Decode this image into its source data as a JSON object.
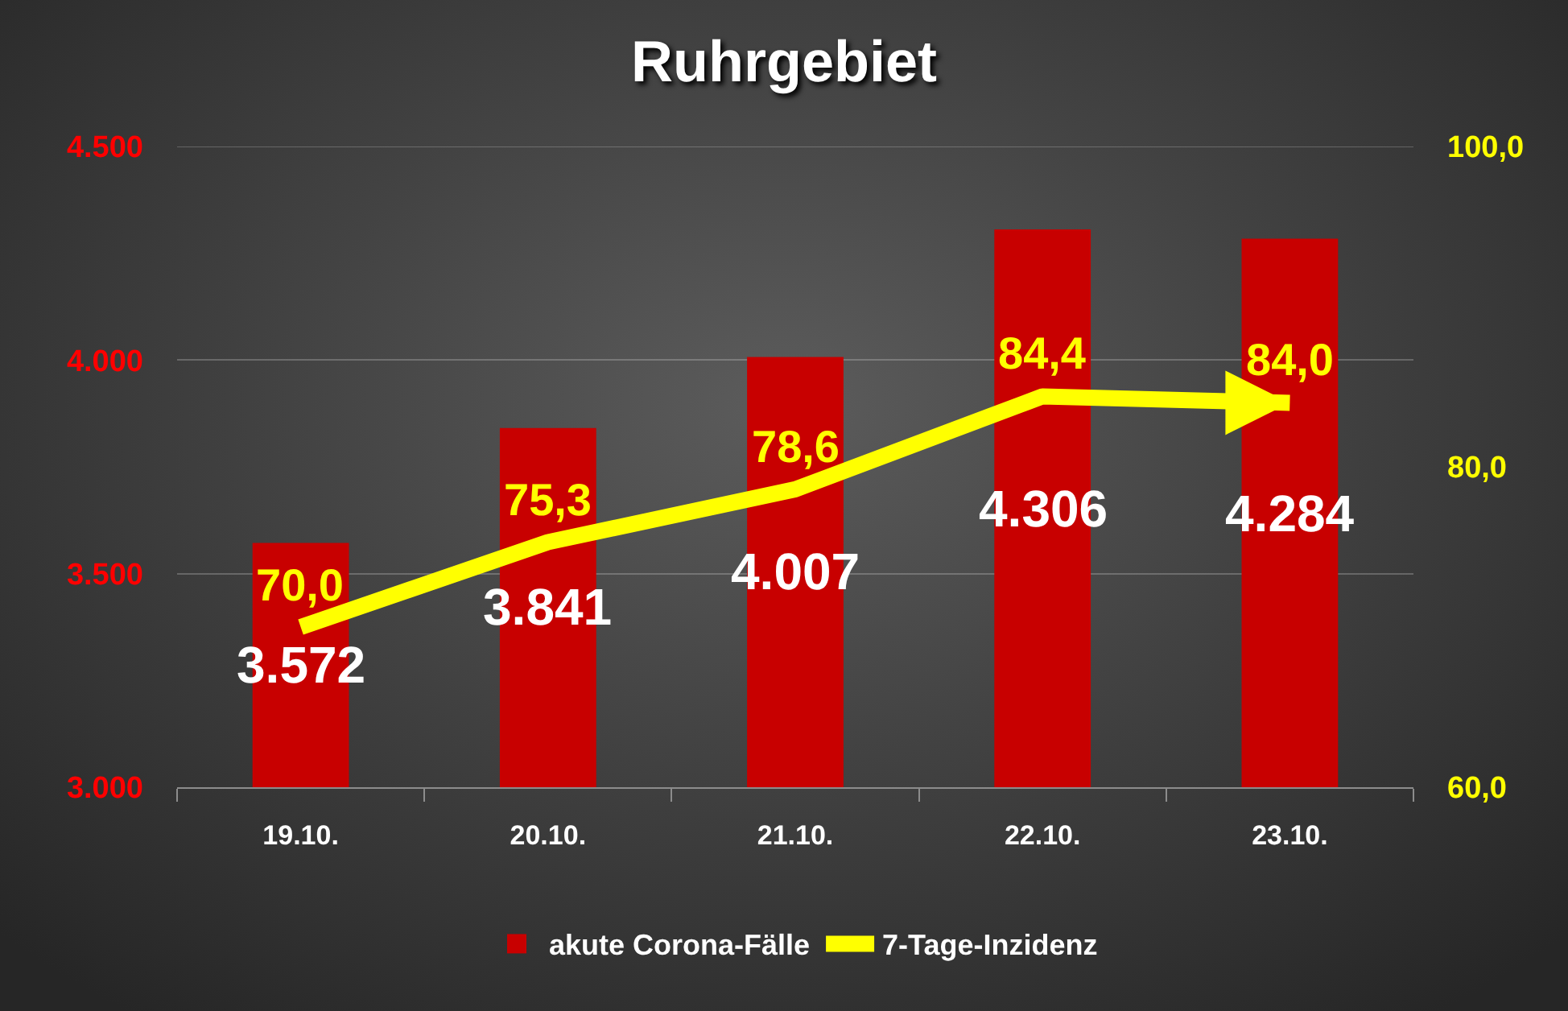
{
  "chart_data": {
    "type": "bar",
    "title": "Ruhrgebiet",
    "categories": [
      "19.10.",
      "20.10.",
      "21.10.",
      "22.10.",
      "23.10."
    ],
    "series": [
      {
        "name": "akute Corona-Fälle",
        "color": "#c80000",
        "values": [
          3572,
          3841,
          4007,
          4306,
          4284
        ],
        "value_labels": [
          "3.572",
          "3.841",
          "4.007",
          "4.306",
          "4.284"
        ]
      },
      {
        "name": "7-Tage-Inzidenz",
        "type": "line",
        "axis": "y2",
        "color": "#ffff00",
        "values": [
          70.0,
          75.3,
          78.6,
          84.4,
          84.0
        ],
        "value_labels": [
          "70,0",
          "75,3",
          "78,6",
          "84,4",
          "84,0"
        ]
      }
    ],
    "ylim": [
      3000,
      4500
    ],
    "yticks": [
      {
        "value": 3000,
        "label": "3.000"
      },
      {
        "value": 3500,
        "label": "3.500"
      },
      {
        "value": 4000,
        "label": "4.000"
      },
      {
        "value": 4500,
        "label": "4.500"
      }
    ],
    "y2lim": [
      60,
      100
    ],
    "y2ticks": [
      {
        "value": 60,
        "label": "60,0"
      },
      {
        "value": 80,
        "label": "80,0"
      },
      {
        "value": 100,
        "label": "100,0"
      }
    ],
    "grid": "y",
    "legend": "bottom"
  }
}
